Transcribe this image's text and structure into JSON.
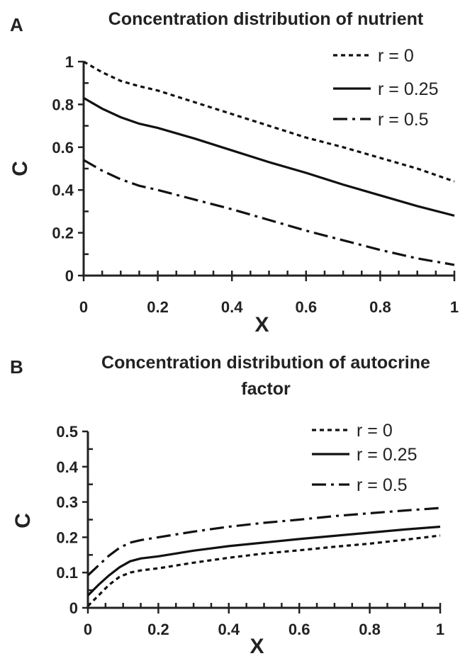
{
  "chart_data": [
    {
      "type": "line",
      "panel_label": "A",
      "title": "Concentration distribution of nutrient",
      "title_lines": [
        "Concentration distribution of nutrient"
      ],
      "xlabel": "X",
      "ylabel": "C",
      "xlim": [
        0,
        1
      ],
      "ylim": [
        0,
        1
      ],
      "xticks": [
        "0",
        "0.2",
        "0.4",
        "0.6",
        "0.8",
        "1"
      ],
      "yticks": [
        "0",
        "0.2",
        "0.4",
        "0.6",
        "0.8",
        "1"
      ],
      "grid": false,
      "legend_position": "top-right",
      "series": [
        {
          "name": "r = 0",
          "style": "dashed",
          "x": [
            0,
            0.05,
            0.1,
            0.15,
            0.2,
            0.3,
            0.4,
            0.5,
            0.6,
            0.7,
            0.8,
            0.9,
            1.0
          ],
          "y": [
            1.0,
            0.95,
            0.91,
            0.885,
            0.865,
            0.81,
            0.755,
            0.7,
            0.645,
            0.6,
            0.55,
            0.5,
            0.44
          ]
        },
        {
          "name": "r = 0.25",
          "style": "solid",
          "x": [
            0,
            0.05,
            0.1,
            0.15,
            0.2,
            0.3,
            0.4,
            0.5,
            0.6,
            0.7,
            0.8,
            0.9,
            1.0
          ],
          "y": [
            0.83,
            0.78,
            0.74,
            0.71,
            0.69,
            0.64,
            0.585,
            0.53,
            0.48,
            0.425,
            0.375,
            0.325,
            0.28
          ]
        },
        {
          "name": "r = 0.5",
          "style": "dashdot",
          "x": [
            0,
            0.05,
            0.1,
            0.15,
            0.2,
            0.3,
            0.4,
            0.5,
            0.6,
            0.7,
            0.8,
            0.9,
            1.0
          ],
          "y": [
            0.54,
            0.49,
            0.45,
            0.42,
            0.4,
            0.355,
            0.31,
            0.26,
            0.21,
            0.165,
            0.12,
            0.08,
            0.05
          ]
        }
      ]
    },
    {
      "type": "line",
      "panel_label": "B",
      "title": "Concentration distribution of autocrine factor",
      "title_lines": [
        "Concentration distribution of autocrine",
        "factor"
      ],
      "xlabel": "X",
      "ylabel": "C",
      "xlim": [
        0,
        1
      ],
      "ylim": [
        0,
        0.5
      ],
      "xticks": [
        "0",
        "0.2",
        "0.4",
        "0.6",
        "0.8",
        "1"
      ],
      "yticks": [
        "0",
        "0.1",
        "0.2",
        "0.3",
        "0.4",
        "0.5"
      ],
      "grid": false,
      "legend_position": "top-right",
      "series": [
        {
          "name": "r = 0",
          "style": "dashed",
          "x": [
            0,
            0.03,
            0.06,
            0.09,
            0.12,
            0.15,
            0.2,
            0.3,
            0.4,
            0.5,
            0.6,
            0.7,
            0.8,
            0.9,
            1.0
          ],
          "y": [
            0.005,
            0.035,
            0.065,
            0.088,
            0.1,
            0.106,
            0.112,
            0.128,
            0.142,
            0.154,
            0.163,
            0.173,
            0.182,
            0.193,
            0.205
          ]
        },
        {
          "name": "r = 0.25",
          "style": "solid",
          "x": [
            0,
            0.03,
            0.06,
            0.09,
            0.12,
            0.15,
            0.2,
            0.3,
            0.4,
            0.5,
            0.6,
            0.7,
            0.8,
            0.9,
            1.0
          ],
          "y": [
            0.035,
            0.065,
            0.092,
            0.115,
            0.132,
            0.14,
            0.146,
            0.162,
            0.175,
            0.185,
            0.195,
            0.204,
            0.213,
            0.222,
            0.23
          ]
        },
        {
          "name": "r = 0.5",
          "style": "dashdot",
          "x": [
            0,
            0.03,
            0.06,
            0.09,
            0.12,
            0.15,
            0.2,
            0.3,
            0.4,
            0.5,
            0.6,
            0.7,
            0.8,
            0.9,
            1.0
          ],
          "y": [
            0.092,
            0.12,
            0.148,
            0.17,
            0.185,
            0.192,
            0.2,
            0.216,
            0.23,
            0.241,
            0.25,
            0.26,
            0.268,
            0.276,
            0.283
          ]
        }
      ]
    }
  ]
}
